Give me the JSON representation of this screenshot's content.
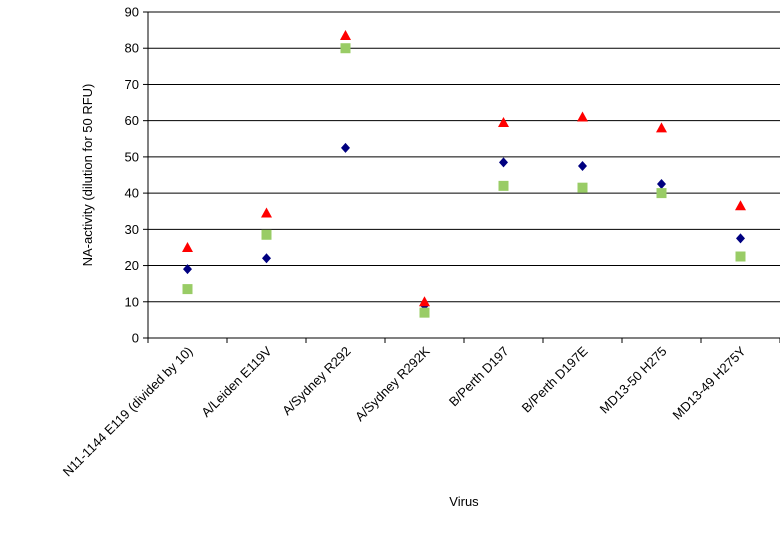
{
  "chart_data": {
    "type": "scatter",
    "title": "",
    "xlabel": "Virus",
    "ylabel": "NA-activity (dilution for 50 RFU)",
    "ylim": [
      0,
      90
    ],
    "yticks": [
      0,
      10,
      20,
      30,
      40,
      50,
      60,
      70,
      80,
      90
    ],
    "grid": true,
    "legend": "none",
    "categories": [
      "N11-1144 E119 (divided by 10)",
      "A/Leiden E119V",
      "A/Sydney R292",
      "A/Sydney R292K",
      "B/Perth D197",
      "B/Perth D197E",
      "MD13-50 H275",
      "MD13-49 H275Y"
    ],
    "series": [
      {
        "marker": "diamond",
        "color": "#000080",
        "values": [
          19,
          22,
          52.5,
          9,
          48.5,
          47.5,
          42.5,
          27.5
        ]
      },
      {
        "marker": "square",
        "color": "#99CC66",
        "values": [
          13.5,
          28.5,
          80,
          7,
          42,
          41.5,
          40,
          22.5
        ]
      },
      {
        "marker": "triangle",
        "color": "#FF0000",
        "values": [
          25,
          34.5,
          83.5,
          10,
          59.5,
          61,
          58,
          36.5
        ]
      }
    ]
  }
}
